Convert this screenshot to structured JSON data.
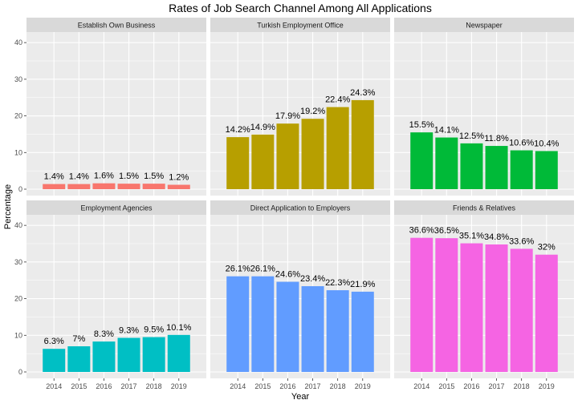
{
  "chart_data": {
    "type": "bar",
    "title": "Rates of Job Search Channel Among All Applications",
    "xlabel": "Year",
    "ylabel": "Percentage",
    "categories": [
      "2014",
      "2015",
      "2016",
      "2017",
      "2018",
      "2019"
    ],
    "ylim": [
      0,
      42
    ],
    "yticks": [
      0,
      10,
      20,
      30,
      40
    ],
    "grid": true,
    "legend": "none",
    "facets": [
      {
        "name": "Establish Own Business",
        "color": "#F8766D",
        "values": [
          1.4,
          1.4,
          1.6,
          1.5,
          1.5,
          1.2
        ],
        "labels": [
          "1.4%",
          "1.4%",
          "1.6%",
          "1.5%",
          "1.5%",
          "1.2%"
        ]
      },
      {
        "name": "Turkish Employment Office",
        "color": "#B79F00",
        "values": [
          14.2,
          14.9,
          17.9,
          19.2,
          22.4,
          24.3
        ],
        "labels": [
          "14.2%",
          "14.9%",
          "17.9%",
          "19.2%",
          "22.4%",
          "24.3%"
        ]
      },
      {
        "name": "Newspaper",
        "color": "#00BA38",
        "values": [
          15.5,
          14.1,
          12.5,
          11.8,
          10.6,
          10.4
        ],
        "labels": [
          "15.5%",
          "14.1%",
          "12.5%",
          "11.8%",
          "10.6%",
          "10.4%"
        ]
      },
      {
        "name": "Employment Agencies",
        "color": "#00BFC4",
        "values": [
          6.3,
          7,
          8.3,
          9.3,
          9.5,
          10.1
        ],
        "labels": [
          "6.3%",
          "7%",
          "8.3%",
          "9.3%",
          "9.5%",
          "10.1%"
        ]
      },
      {
        "name": "Direct Application to Employers",
        "color": "#619CFF",
        "values": [
          26.1,
          26.1,
          24.6,
          23.4,
          22.3,
          21.9
        ],
        "labels": [
          "26.1%",
          "26.1%",
          "24.6%",
          "23.4%",
          "22.3%",
          "21.9%"
        ]
      },
      {
        "name": "Friends & Relatives",
        "color": "#F564E3",
        "values": [
          36.6,
          36.5,
          35.1,
          34.8,
          33.6,
          32
        ],
        "labels": [
          "36.6%",
          "36.5%",
          "35.1%",
          "34.8%",
          "33.6%",
          "32%"
        ]
      }
    ]
  }
}
